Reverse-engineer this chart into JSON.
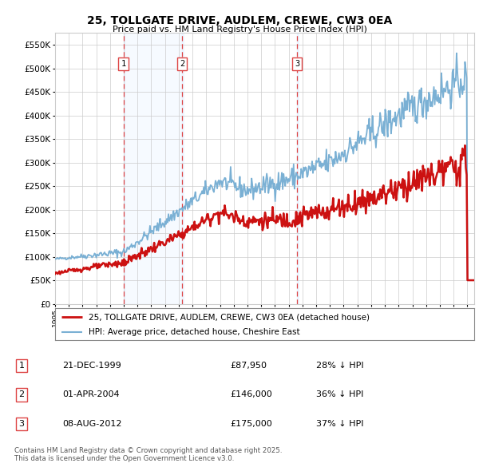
{
  "title": "25, TOLLGATE DRIVE, AUDLEM, CREWE, CW3 0EA",
  "subtitle": "Price paid vs. HM Land Registry's House Price Index (HPI)",
  "background_color": "#ffffff",
  "plot_bg_color": "#ffffff",
  "shading_color": "#ddeeff",
  "sale_dates": [
    "1999-12-21",
    "2004-04-01",
    "2012-08-08"
  ],
  "sale_prices": [
    87950,
    146000,
    175000
  ],
  "sale_labels": [
    "1",
    "2",
    "3"
  ],
  "legend_house": "25, TOLLGATE DRIVE, AUDLEM, CREWE, CW3 0EA (detached house)",
  "legend_hpi": "HPI: Average price, detached house, Cheshire East",
  "table_rows": [
    [
      "1",
      "21-DEC-1999",
      "£87,950",
      "28% ↓ HPI"
    ],
    [
      "2",
      "01-APR-2004",
      "£146,000",
      "36% ↓ HPI"
    ],
    [
      "3",
      "08-AUG-2012",
      "£175,000",
      "37% ↓ HPI"
    ]
  ],
  "footer": "Contains HM Land Registry data © Crown copyright and database right 2025.\nThis data is licensed under the Open Government Licence v3.0.",
  "ylim": [
    0,
    575000
  ],
  "yticks": [
    0,
    50000,
    100000,
    150000,
    200000,
    250000,
    300000,
    350000,
    400000,
    450000,
    500000,
    550000
  ],
  "ytick_labels": [
    "£0",
    "£50K",
    "£100K",
    "£150K",
    "£200K",
    "£250K",
    "£300K",
    "£350K",
    "£400K",
    "£450K",
    "£500K",
    "£550K"
  ],
  "hpi_color": "#7ab0d4",
  "sale_color": "#cc1111",
  "dashed_line_color": "#dd4444",
  "grid_color": "#cccccc",
  "label_box_color": "#dd4444"
}
